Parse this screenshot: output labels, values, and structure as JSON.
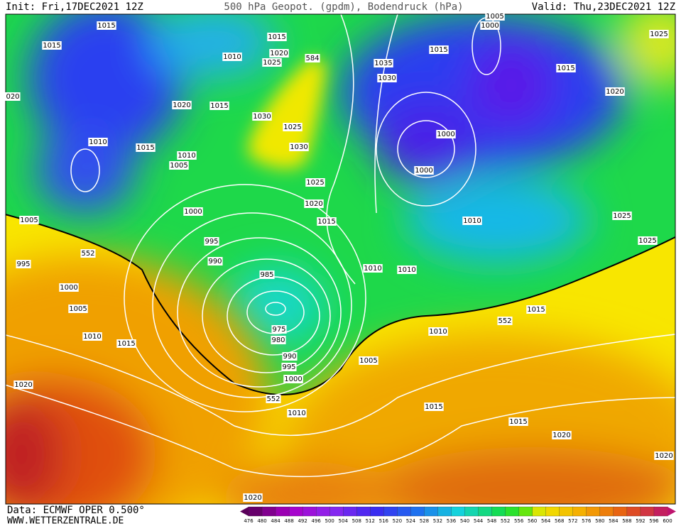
{
  "header": {
    "init": "Init: Fri,17DEC2021 12Z",
    "title": "500 hPa Geopot. (gpdm), Bodendruck (hPa)",
    "valid": "Valid: Thu,23DEC2021 12Z"
  },
  "isobar_labels": [
    1015,
    1015,
    1015,
    1010,
    1020,
    1025,
    584,
    1005,
    1000,
    1015,
    1035,
    1030,
    1015,
    1025,
    1020,
    "020",
    1020,
    1015,
    1030,
    1025,
    1030,
    1000,
    1000,
    1010,
    1015,
    1010,
    1005,
    1025,
    1020,
    1015,
    1000,
    1010,
    1025,
    1025,
    1005,
    995,
    990,
    552,
    995,
    985,
    1000,
    1010,
    1010,
    1005,
    1015,
    552,
    1010,
    975,
    980,
    1010,
    1015,
    990,
    995,
    1005,
    1000,
    1020,
    552,
    1010,
    1015,
    1015,
    1020,
    1020,
    1020
  ],
  "colorbar": {
    "labels": [
      476,
      480,
      484,
      488,
      492,
      496,
      500,
      504,
      508,
      512,
      516,
      520,
      524,
      528,
      532,
      536,
      540,
      544,
      548,
      552,
      556,
      560,
      564,
      568,
      572,
      576,
      580,
      584,
      588,
      592,
      596,
      600
    ]
  },
  "footer": {
    "data": "Data: ECMWF OPER 0.500°",
    "site": "WWW.WETTERZENTRALE.DE"
  }
}
